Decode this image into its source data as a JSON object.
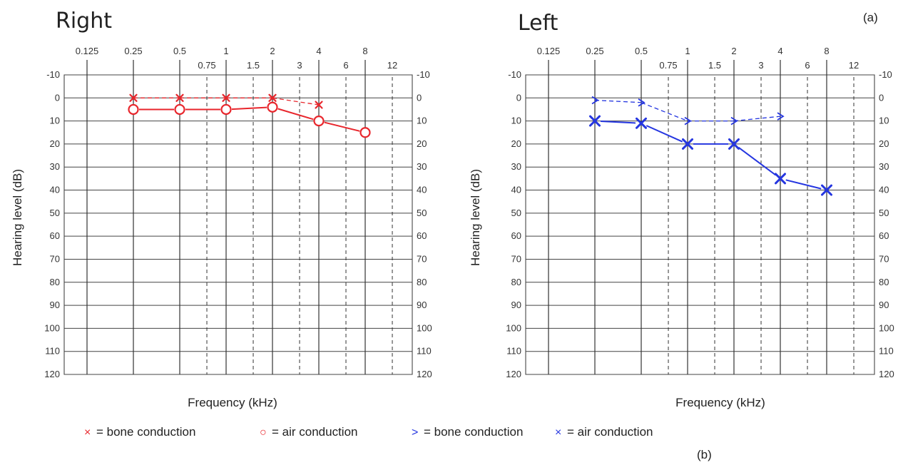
{
  "panel_label_a": "(a)",
  "panel_label_b": "(b)",
  "legend": [
    {
      "symbol": "×",
      "text": "= bone conduction",
      "color": "#e8262c"
    },
    {
      "symbol": "○",
      "text": "= air conduction",
      "color": "#e8262c"
    },
    {
      "symbol": ">",
      "text": "= bone conduction",
      "color": "#2536e0"
    },
    {
      "symbol": "×",
      "text": "= air conduction",
      "color": "#2536e0"
    }
  ],
  "chart_data": [
    {
      "type": "line",
      "title": "Right",
      "xlabel": "Frequency (kHz)",
      "ylabel": "Hearing level (dB)",
      "x_scale": "log",
      "x_ticks_top": [
        "0.125",
        "0.25",
        "0.5",
        "1",
        "2",
        "4",
        "8"
      ],
      "x_ticks_mid": [
        "0.75",
        "1.5",
        "3",
        "6",
        "12"
      ],
      "y_ticks": [
        "-10",
        "0",
        "10",
        "20",
        "30",
        "40",
        "50",
        "60",
        "70",
        "80",
        "90",
        "100",
        "110",
        "120"
      ],
      "ylim": [
        -10,
        120
      ],
      "y_inverted": true,
      "grid": true,
      "series": [
        {
          "name": "bone conduction",
          "marker": "cross",
          "line": "dashed",
          "color": "#e8262c",
          "points": [
            [
              0.25,
              0
            ],
            [
              0.5,
              0
            ],
            [
              1,
              0
            ],
            [
              2,
              0
            ],
            [
              4,
              3
            ]
          ]
        },
        {
          "name": "air conduction",
          "marker": "circle",
          "line": "solid",
          "color": "#e8262c",
          "points": [
            [
              0.25,
              5
            ],
            [
              0.5,
              5
            ],
            [
              1,
              5
            ],
            [
              2,
              4
            ],
            [
              4,
              10
            ],
            [
              8,
              15
            ]
          ]
        }
      ]
    },
    {
      "type": "line",
      "title": "Left",
      "xlabel": "Frequency (kHz)",
      "ylabel": "Hearing level (dB)",
      "x_scale": "log",
      "x_ticks_top": [
        "0.125",
        "0.25",
        "0.5",
        "1",
        "2",
        "4",
        "8"
      ],
      "x_ticks_mid": [
        "0.75",
        "1.5",
        "3",
        "6",
        "12"
      ],
      "y_ticks": [
        "-10",
        "0",
        "10",
        "20",
        "30",
        "40",
        "50",
        "60",
        "70",
        "80",
        "90",
        "100",
        "110",
        "120"
      ],
      "ylim": [
        -10,
        120
      ],
      "y_inverted": true,
      "grid": true,
      "series": [
        {
          "name": "bone conduction",
          "marker": "chevron",
          "line": "dashed",
          "color": "#2536e0",
          "points": [
            [
              0.25,
              1
            ],
            [
              0.5,
              2
            ],
            [
              1,
              10
            ],
            [
              2,
              10
            ],
            [
              4,
              8
            ]
          ]
        },
        {
          "name": "air conduction",
          "marker": "cross",
          "line": "solid",
          "color": "#2536e0",
          "points": [
            [
              0.25,
              10
            ],
            [
              0.5,
              11
            ],
            [
              1,
              20
            ],
            [
              2,
              20
            ],
            [
              4,
              35
            ],
            [
              8,
              40
            ]
          ]
        }
      ]
    }
  ]
}
